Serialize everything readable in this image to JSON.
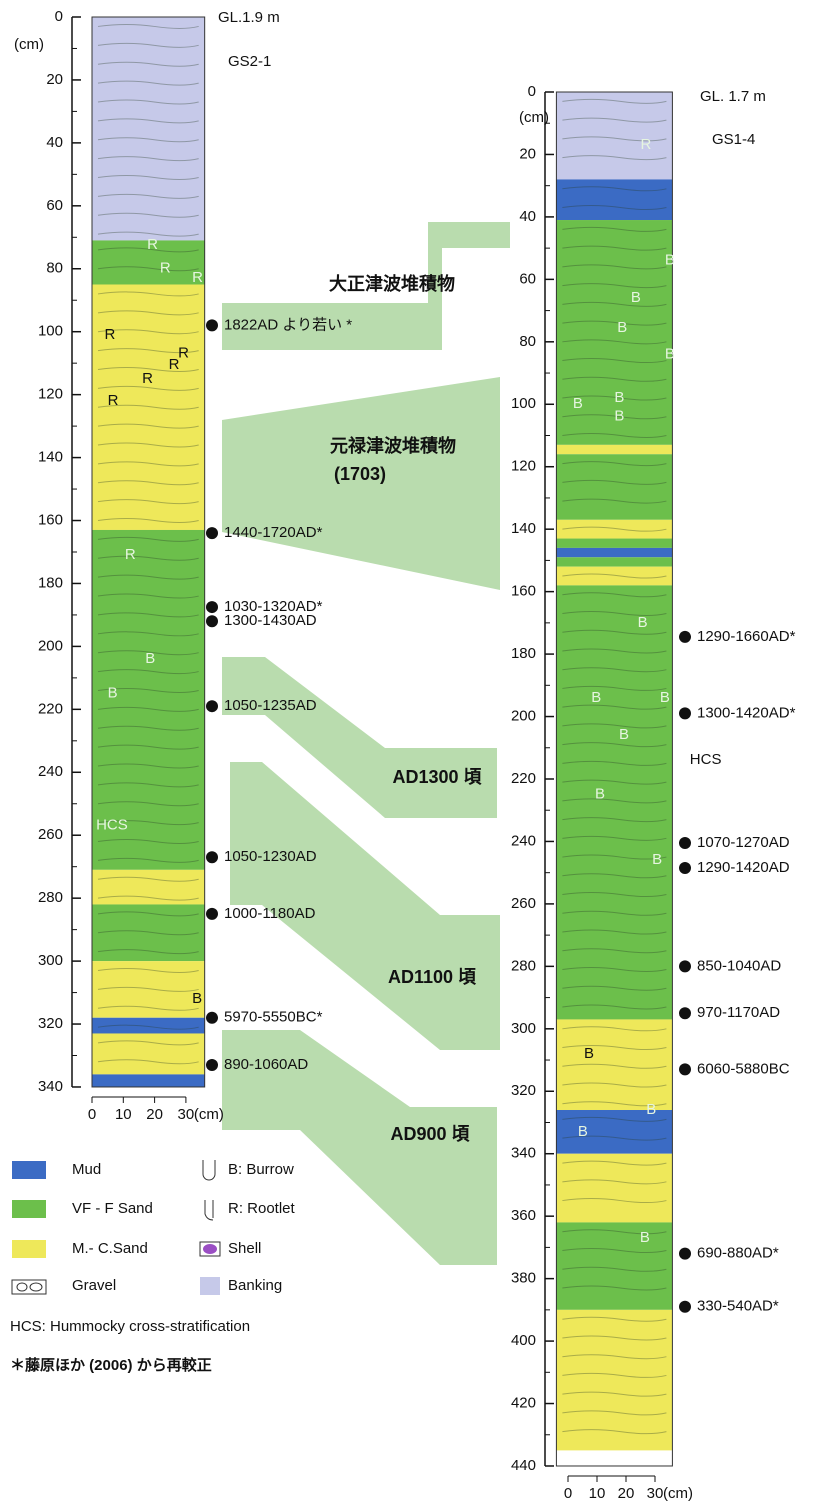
{
  "cores": [
    {
      "name": "GS2-1",
      "ground_level": "GL.1.9 m",
      "depth_unit": "(cm)",
      "width_unit": "(cm)",
      "ylim": [
        0,
        340
      ],
      "yticks": [
        0,
        20,
        40,
        60,
        80,
        100,
        120,
        140,
        160,
        180,
        200,
        220,
        240,
        260,
        280,
        300,
        320,
        340
      ],
      "xlim": [
        0,
        36
      ],
      "xticks": [
        0,
        10,
        20,
        30
      ],
      "layers": [
        {
          "top": 0,
          "bottom": 71,
          "color": "#c6c9e9"
        },
        {
          "top": 71,
          "bottom": 85,
          "color": "#6cbf4b"
        },
        {
          "top": 85,
          "bottom": 163,
          "color": "#eee85a"
        },
        {
          "top": 163,
          "bottom": 271,
          "color": "#6cbf4b"
        },
        {
          "top": 271,
          "bottom": 282,
          "color": "#eee85a"
        },
        {
          "top": 282,
          "bottom": 300,
          "color": "#6cbf4b"
        },
        {
          "top": 300,
          "bottom": 318,
          "color": "#eee85a"
        },
        {
          "top": 318,
          "bottom": 323,
          "color": "#3b6bc4"
        },
        {
          "top": 323,
          "bottom": 336,
          "color": "#eee85a"
        },
        {
          "top": 336,
          "bottom": 340,
          "color": "#3b6bc4"
        }
      ],
      "dates": [
        {
          "depth": 98,
          "label": "1822AD より若い *"
        },
        {
          "depth": 164,
          "label": "1440-1720AD*"
        },
        {
          "depth": 187.5,
          "label": "1030-1320AD*"
        },
        {
          "depth": 192,
          "label": "1300-1430AD"
        },
        {
          "depth": 219,
          "label": "1050-1235AD"
        },
        {
          "depth": 267,
          "label": "1050-1230AD"
        },
        {
          "depth": 285,
          "label": "1000-1180AD"
        },
        {
          "depth": 318,
          "label": "5970-5550BC*"
        },
        {
          "depth": 333,
          "label": "890-1060AD"
        }
      ],
      "labels": [
        {
          "text": "R",
          "depth": 72.5,
          "x": 17.6
        },
        {
          "text": "R",
          "depth": 80,
          "x": 21.7
        },
        {
          "text": "R",
          "depth": 83,
          "x": 32
        },
        {
          "text": "R",
          "depth": 101,
          "x": 4
        },
        {
          "text": "R",
          "depth": 107,
          "x": 27.5
        },
        {
          "text": "R",
          "depth": 115,
          "x": 16
        },
        {
          "text": "R",
          "depth": 110.6,
          "x": 24.5
        },
        {
          "text": "R",
          "depth": 122,
          "x": 5
        },
        {
          "text": "R",
          "depth": 171,
          "x": 10.5
        },
        {
          "text": "B",
          "depth": 204,
          "x": 17
        },
        {
          "text": "B",
          "depth": 215,
          "x": 5
        },
        {
          "text": "B",
          "depth": 312,
          "x": 32
        },
        {
          "text": "HCS",
          "depth": 257,
          "x": 1.3
        }
      ]
    },
    {
      "name": "GS1-4",
      "ground_level": "GL. 1.7 m",
      "depth_unit": "(cm)",
      "width_unit": "(cm)",
      "ylim": [
        0,
        440
      ],
      "yticks": [
        0,
        20,
        40,
        60,
        80,
        100,
        120,
        140,
        160,
        180,
        200,
        220,
        240,
        260,
        280,
        300,
        320,
        340,
        360,
        380,
        400,
        420,
        440
      ],
      "xlim": [
        -4,
        36
      ],
      "xticks": [
        0,
        10,
        20,
        30
      ],
      "layers": [
        {
          "top": 0,
          "bottom": 28,
          "color": "#c6c9e9"
        },
        {
          "top": 28,
          "bottom": 41,
          "color": "#3b6bc4"
        },
        {
          "top": 41,
          "bottom": 113,
          "color": "#6cbf4b"
        },
        {
          "top": 113,
          "bottom": 116,
          "color": "#eee85a"
        },
        {
          "top": 116,
          "bottom": 137,
          "color": "#6cbf4b"
        },
        {
          "top": 137,
          "bottom": 143,
          "color": "#eee85a"
        },
        {
          "top": 143,
          "bottom": 146,
          "color": "#6cbf4b"
        },
        {
          "top": 146,
          "bottom": 149,
          "color": "#3b6bc4"
        },
        {
          "top": 149,
          "bottom": 152,
          "color": "#6cbf4b"
        },
        {
          "top": 152,
          "bottom": 158,
          "color": "#eee85a"
        },
        {
          "top": 158,
          "bottom": 297,
          "color": "#6cbf4b"
        },
        {
          "top": 297,
          "bottom": 326,
          "color": "#eee85a"
        },
        {
          "top": 326,
          "bottom": 340,
          "color": "#3b6bc4"
        },
        {
          "top": 340,
          "bottom": 362,
          "color": "#eee85a"
        },
        {
          "top": 362,
          "bottom": 390,
          "color": "#6cbf4b"
        },
        {
          "top": 390,
          "bottom": 435,
          "color": "#eee85a"
        }
      ],
      "dates": [
        {
          "depth": 174.5,
          "label": "1290-1660AD*"
        },
        {
          "depth": 199,
          "label": "1300-1420AD*"
        },
        {
          "depth": 240.5,
          "label": "1070-1270AD"
        },
        {
          "depth": 248.5,
          "label": "1290-1420AD"
        },
        {
          "depth": 280,
          "label": "850-1040AD"
        },
        {
          "depth": 295,
          "label": "970-1170AD"
        },
        {
          "depth": 313,
          "label": "6060-5880BC"
        },
        {
          "depth": 372,
          "label": "690-880AD*"
        },
        {
          "depth": 389,
          "label": "330-540AD*"
        }
      ],
      "labels": [
        {
          "text": "R",
          "depth": 17,
          "x": 25
        },
        {
          "text": "B",
          "depth": 54,
          "x": 33.4
        },
        {
          "text": "B",
          "depth": 66,
          "x": 21.7
        },
        {
          "text": "B",
          "depth": 75.6,
          "x": 17
        },
        {
          "text": "B",
          "depth": 84,
          "x": 33.4
        },
        {
          "text": "B",
          "depth": 100,
          "x": 1.7
        },
        {
          "text": "B",
          "depth": 98,
          "x": 16
        },
        {
          "text": "B",
          "depth": 104,
          "x": 16
        },
        {
          "text": "B",
          "depth": 170,
          "x": 24
        },
        {
          "text": "B",
          "depth": 194,
          "x": 8
        },
        {
          "text": "B",
          "depth": 194,
          "x": 31.7
        },
        {
          "text": "B",
          "depth": 206,
          "x": 17.6
        },
        {
          "text": "B",
          "depth": 225,
          "x": 9.3
        },
        {
          "text": "B",
          "depth": 246,
          "x": 29
        },
        {
          "text": "B",
          "depth": 308,
          "x": 5.5
        },
        {
          "text": "B",
          "depth": 326,
          "x": 27
        },
        {
          "text": "B",
          "depth": 333,
          "x": 3.4
        },
        {
          "text": "B",
          "depth": 367,
          "x": 24.8
        },
        {
          "text": "HCS",
          "depth": 214,
          "x": 42
        }
      ]
    }
  ],
  "correlations": [
    {
      "label": "大正津波堆積物"
    },
    {
      "label": "元禄津波堆積物",
      "sublabel": "(1703)"
    },
    {
      "label": "AD1300 頃"
    },
    {
      "label": "AD1100 頃"
    },
    {
      "label": "AD900 頃"
    }
  ],
  "legend": [
    {
      "label": "Mud",
      "color": "#3b6bc4"
    },
    {
      "label": "VF - F Sand",
      "color": "#6cbf4b"
    },
    {
      "label": "M.- C.Sand",
      "color": "#eee85a"
    },
    {
      "label": "Gravel"
    }
  ],
  "symbols": [
    {
      "label": "B: Burrow"
    },
    {
      "label": "R: Rootlet"
    },
    {
      "label": "Shell",
      "color": "#9b4fc4"
    },
    {
      "label": "Banking",
      "color": "#c6c9e9"
    }
  ],
  "notes": [
    "HCS: Hummocky cross-stratification",
    "＊藤原ほか (2006) から再較正"
  ]
}
